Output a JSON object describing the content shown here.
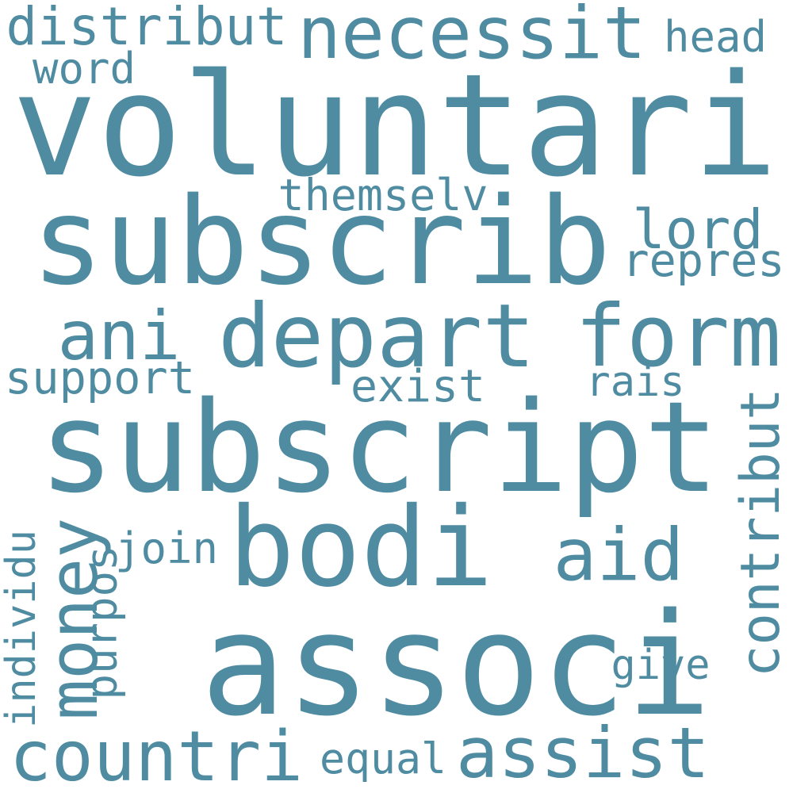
{
  "word_color": "#4f8ca2",
  "words": [
    "voluntari",
    "subscrib",
    "subscript",
    "associ",
    "bodi",
    "depart",
    "form",
    "necessit",
    "distribut",
    "countri",
    "assist",
    "money",
    "ani",
    "aid",
    "contribut",
    "lord",
    "repres",
    "themselv",
    "support",
    "exist",
    "rais",
    "join",
    "purpos",
    "individu",
    "give",
    "equal",
    "head",
    "word"
  ]
}
